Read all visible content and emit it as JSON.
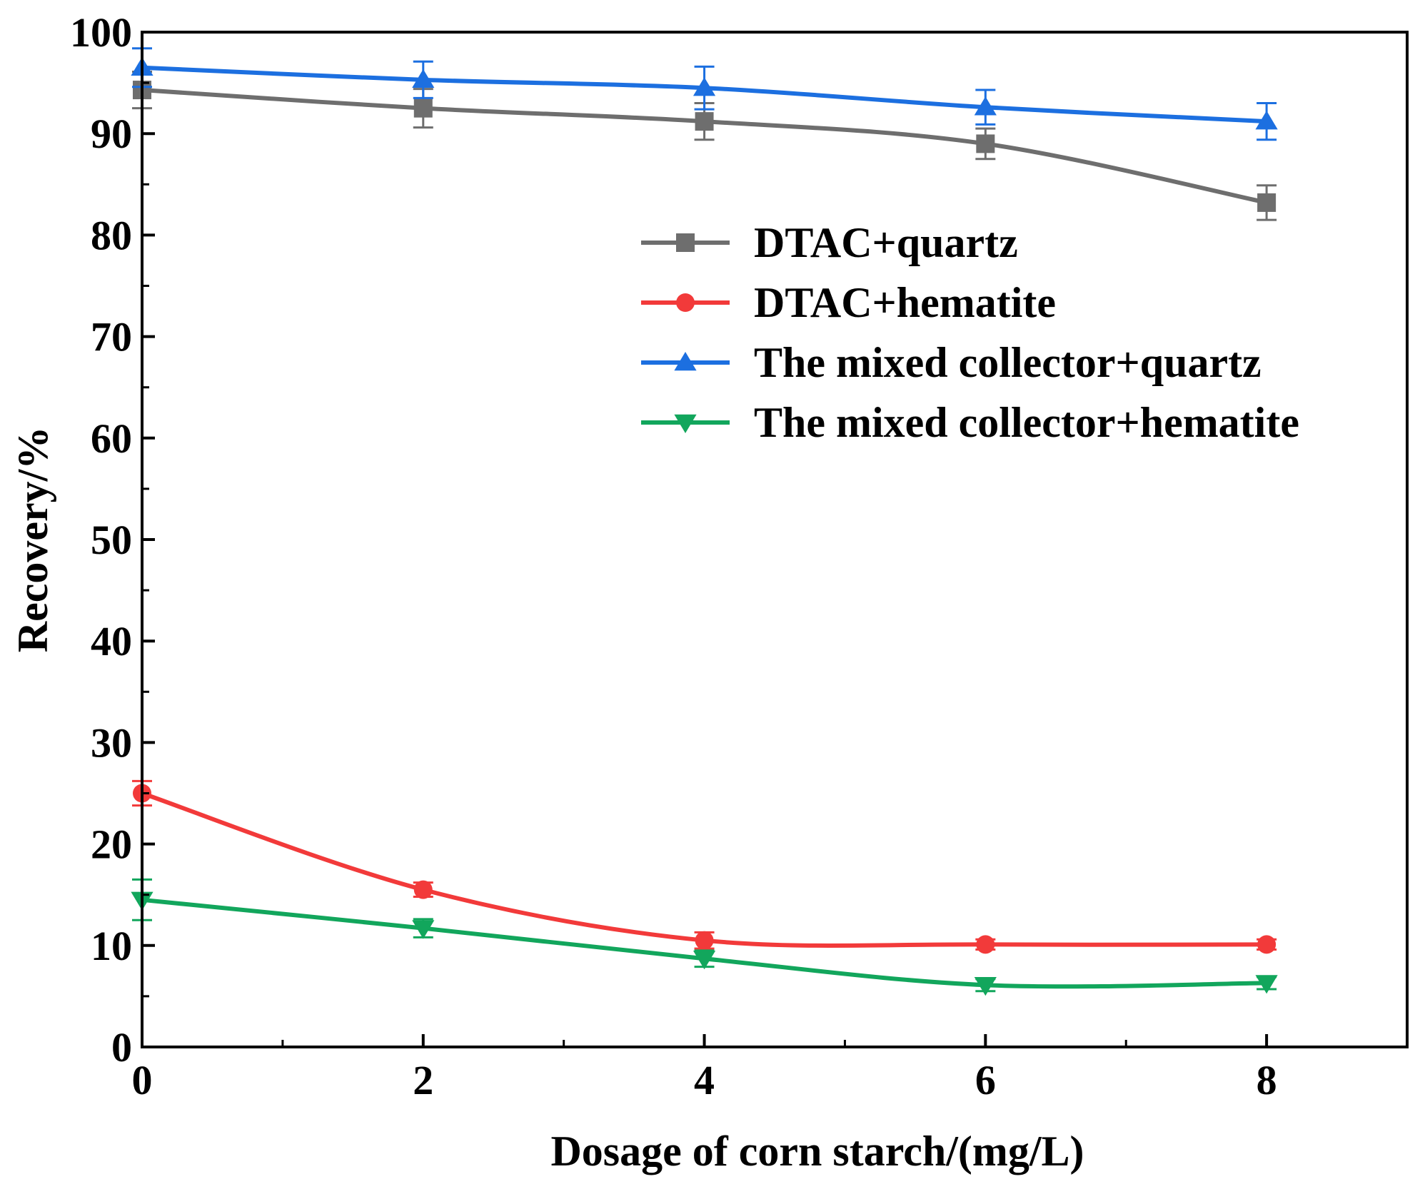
{
  "chart_data": {
    "type": "line",
    "title": "",
    "xlabel": "Dosage of corn starch/(mg/L)",
    "ylabel": "Recovery/%",
    "xlim": [
      0,
      9
    ],
    "ylim": [
      0,
      100
    ],
    "xticks": [
      0,
      2,
      4,
      6,
      8
    ],
    "yticks": [
      0,
      10,
      20,
      30,
      40,
      50,
      60,
      70,
      80,
      90,
      100
    ],
    "grid": false,
    "legend_position": "upper-right",
    "x": [
      0,
      2,
      4,
      6,
      8
    ],
    "series": [
      {
        "name": "DTAC+quartz",
        "color": "#6e6e6e",
        "marker": "square",
        "values": [
          94.3,
          92.5,
          91.2,
          89.0,
          83.2
        ],
        "errors": [
          1.8,
          1.9,
          1.8,
          1.5,
          1.7
        ]
      },
      {
        "name": "DTAC+hematite",
        "color": "#f23a3a",
        "marker": "circle",
        "values": [
          25.0,
          15.5,
          10.5,
          10.1,
          10.1
        ],
        "errors": [
          1.2,
          0.7,
          0.8,
          0.5,
          0.5
        ]
      },
      {
        "name": "The mixed collector+quartz",
        "color": "#1c6fe0",
        "marker": "triangle-up",
        "values": [
          96.5,
          95.3,
          94.5,
          92.6,
          91.2
        ],
        "errors": [
          1.9,
          1.8,
          2.1,
          1.7,
          1.8
        ]
      },
      {
        "name": "The mixed collector+hematite",
        "color": "#12a65c",
        "marker": "triangle-down",
        "values": [
          14.5,
          11.7,
          8.7,
          6.1,
          6.3
        ],
        "errors": [
          2.0,
          0.9,
          0.8,
          0.6,
          0.6
        ]
      }
    ]
  }
}
